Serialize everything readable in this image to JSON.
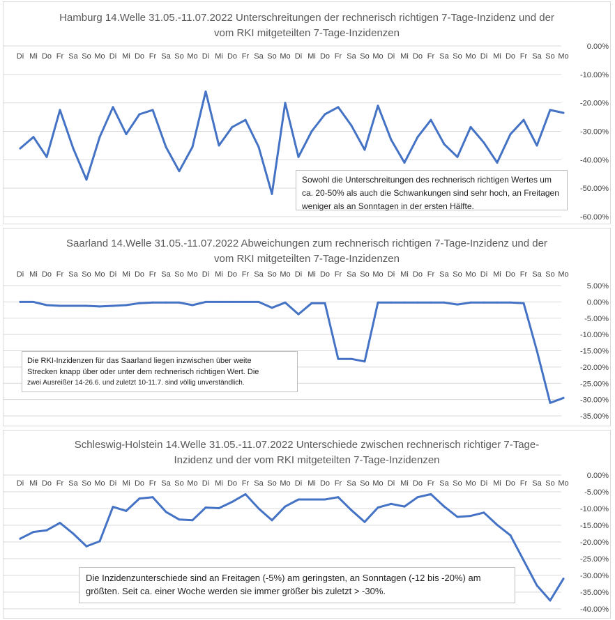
{
  "chart_data": [
    {
      "type": "line",
      "title_lines": [
        "Hamburg 14.Welle 31.05.-11.07.2022 Unterschreitungen der rechnerisch richtigen 7-Tage-Inzidenz und der",
        "vom RKI mitgeteilten 7-Tage-Inzidenzen"
      ],
      "categories": [
        "Di",
        "Mi",
        "Do",
        "Fr",
        "Sa",
        "So",
        "Mo",
        "Di",
        "Mi",
        "Do",
        "Fr",
        "Sa",
        "So",
        "Mo",
        "Di",
        "Mi",
        "Do",
        "Fr",
        "Sa",
        "So",
        "Mo",
        "Di",
        "Mi",
        "Do",
        "Fr",
        "Sa",
        "So",
        "Mo",
        "Di",
        "Mi",
        "Do",
        "Fr",
        "Sa",
        "So",
        "Mo",
        "Di",
        "Mi",
        "Do",
        "Fr",
        "Sa",
        "So",
        "Mo"
      ],
      "values": [
        -36,
        -32,
        -39,
        -22.5,
        -36,
        -47,
        -32,
        -21.5,
        -31,
        -24,
        -22.5,
        -35.5,
        -44,
        -35.5,
        -16,
        -35,
        -28.5,
        -26,
        -35.5,
        -52,
        -20,
        -39,
        -30,
        -24,
        -21.5,
        -28,
        -36.5,
        -21,
        -33,
        -41,
        -32,
        -26,
        -34.5,
        -39,
        -28.5,
        -34,
        -41,
        -31,
        -26,
        -35,
        -22.5,
        -23.5
      ],
      "yticks": [
        "0.00%",
        "-10.00%",
        "-20.00%",
        "-30.00%",
        "-40.00%",
        "-50.00%",
        "-60.00%"
      ],
      "ylim": [
        -60,
        0
      ],
      "note_lines": [
        "Sowohl die Unterschreitungen des rechnerisch richtigen Wertes um",
        "ca. 20-50%  als auch die  Schwankungen sind sehr hoch, an Freitagen",
        "weniger als an Sonntagen in der ersten Hälfte."
      ]
    },
    {
      "type": "line",
      "title_lines": [
        "Saarland 14.Welle 31.05.-11.07.2022 Abweichungen zum rechnerisch richtigen 7-Tage-Inzidenz und der",
        "vom RKI mitgeteilten 7-Tage-Inzidenzen"
      ],
      "categories": [
        "Di",
        "Mi",
        "Do",
        "Fr",
        "Sa",
        "So",
        "Mo",
        "Di",
        "Mi",
        "Do",
        "Fr",
        "Sa",
        "So",
        "Mo",
        "Di",
        "Mi",
        "Do",
        "Fr",
        "Sa",
        "So",
        "Mo",
        "Di",
        "Mi",
        "Do",
        "Fr",
        "Sa",
        "So",
        "Mo",
        "Di",
        "Mi",
        "Do",
        "Fr",
        "Sa",
        "So",
        "Mo",
        "Di",
        "Mi",
        "Do",
        "Fr",
        "Sa",
        "So",
        "Mo"
      ],
      "values": [
        0,
        0,
        -1,
        -1.2,
        -1.2,
        -1.2,
        -1.4,
        -1.2,
        -1,
        -0.4,
        -0.2,
        -0.2,
        -0.2,
        -1,
        0,
        0,
        0,
        0,
        0,
        -1.8,
        -0.2,
        -3.8,
        -0.4,
        -0.4,
        -17.5,
        -17.5,
        -18.3,
        -0.2,
        -0.2,
        -0.2,
        -0.2,
        -0.2,
        -0.2,
        -0.8,
        -0.2,
        -0.2,
        -0.2,
        -0.2,
        -0.4,
        -15,
        -31,
        -29.5
      ],
      "yticks": [
        "5.00%",
        "0.00%",
        "-5.00%",
        "-10.00%",
        "-15.00%",
        "-20.00%",
        "-25.00%",
        "-30.00%",
        "-35.00%"
      ],
      "ylim": [
        -35,
        5
      ],
      "note_lines": [
        "Die RKI-Inzidenzen für das Saarland liegen inzwischen über weite",
        "Strecken knapp über oder unter dem rechnerisch richtigen Wert.  Die",
        "zwei Ausreißer 14-26.6. und zuletzt 10-11.7. sind völlig unverständlich."
      ]
    },
    {
      "type": "line",
      "title_lines": [
        "Schleswig-Holstein 14.Welle 31.05.-11.07.2022 Unterschiede zwischen rechnerisch richtiger 7-Tage-",
        "Inzidenz und der vom RKI mitgeteilten 7-Tage-Inzidenzen"
      ],
      "categories": [
        "Di",
        "Mi",
        "Do",
        "Fr",
        "Sa",
        "So",
        "Mo",
        "Di",
        "Mi",
        "Do",
        "Fr",
        "Sa",
        "So",
        "Mo",
        "Di",
        "Mi",
        "Do",
        "Fr",
        "Sa",
        "So",
        "Mo",
        "Di",
        "Mi",
        "Do",
        "Fr",
        "Sa",
        "So",
        "Mo",
        "Di",
        "Mi",
        "Do",
        "Fr",
        "Sa",
        "So",
        "Mo",
        "Di",
        "Mi",
        "Do",
        "Fr",
        "Sa",
        "So",
        "Mo"
      ],
      "values": [
        -19,
        -17,
        -16.5,
        -14.3,
        -17.5,
        -21.3,
        -19.8,
        -9.5,
        -10.7,
        -7,
        -6.6,
        -11,
        -13.3,
        -13.5,
        -9.7,
        -9.9,
        -8,
        -5.7,
        -10,
        -13.5,
        -9.4,
        -7.3,
        -7.3,
        -7.3,
        -6.6,
        -10.5,
        -14,
        -9.7,
        -8.6,
        -9.4,
        -6.6,
        -5.7,
        -9.4,
        -12.5,
        -12.2,
        -11.2,
        -14.9,
        -18,
        -25.5,
        -33,
        -37.5,
        -31
      ],
      "yticks": [
        "0.00%",
        "-5.00%",
        "-10.00%",
        "-15.00%",
        "-20.00%",
        "-25.00%",
        "-30.00%",
        "-35.00%",
        "-40.00%"
      ],
      "ylim": [
        -40,
        0
      ],
      "note_lines": [
        "Die Inzidenzunterschiede sind an Freitagen (-5%) am geringsten, an Sonntagen (-12 bis -20%) am",
        "größten. Seit ca. einer Woche werden sie immer größer bis zuletzt > -30%."
      ]
    }
  ]
}
